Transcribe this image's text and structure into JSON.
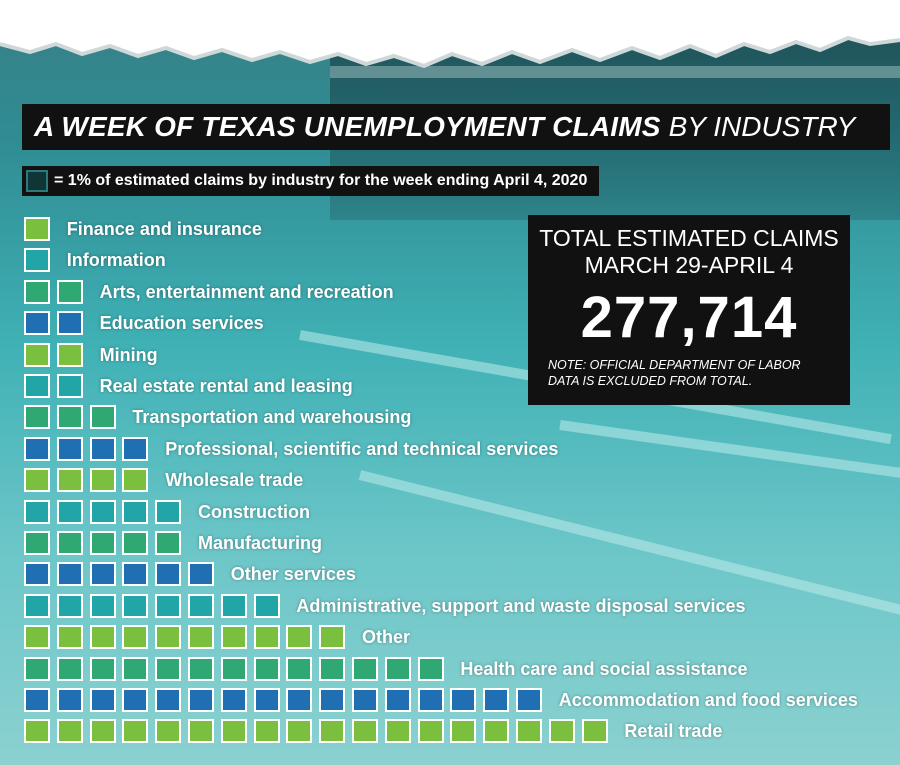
{
  "title": {
    "bold": "A WEEK OF TEXAS UNEMPLOYMENT CLAIMS",
    "light": "BY INDUSTRY"
  },
  "legend": {
    "text": "= 1% of estimated claims by industry for the week ending April 4, 2020"
  },
  "total_box": {
    "line1": "TOTAL ESTIMATED CLAIMS",
    "line2": "MARCH 29-APRIL 4",
    "value": "277,714",
    "note": "NOTE: OFFICIAL DEPARTMENT OF LABOR DATA IS EXCLUDED FROM TOTAL."
  },
  "colors": {
    "green": "#7bbf3f",
    "teal": "#22a5a6",
    "mint": "#2fa873",
    "blue": "#1f6fb2"
  },
  "chart_data": {
    "type": "bar",
    "unit": "1% of estimated claims",
    "categories": [
      "Finance and insurance",
      "Information",
      "Arts, entertainment and recreation",
      "Education services",
      "Mining",
      "Real estate rental and leasing",
      "Transportation and warehousing",
      "Professional, scientific and technical services",
      "Wholesale trade",
      "Construction",
      "Manufacturing",
      "Other services",
      "Administrative, support and waste disposal services",
      "Other",
      "Health care and social assistance",
      "Accommodation and food services",
      "Retail trade"
    ],
    "values": [
      1,
      1,
      2,
      2,
      2,
      2,
      3,
      4,
      4,
      5,
      5,
      6,
      8,
      10,
      13,
      16,
      18
    ],
    "row_colors": [
      "green",
      "teal",
      "mint",
      "blue",
      "green",
      "teal",
      "mint",
      "blue",
      "green",
      "teal",
      "mint",
      "blue",
      "teal",
      "green",
      "mint",
      "blue",
      "green"
    ]
  }
}
